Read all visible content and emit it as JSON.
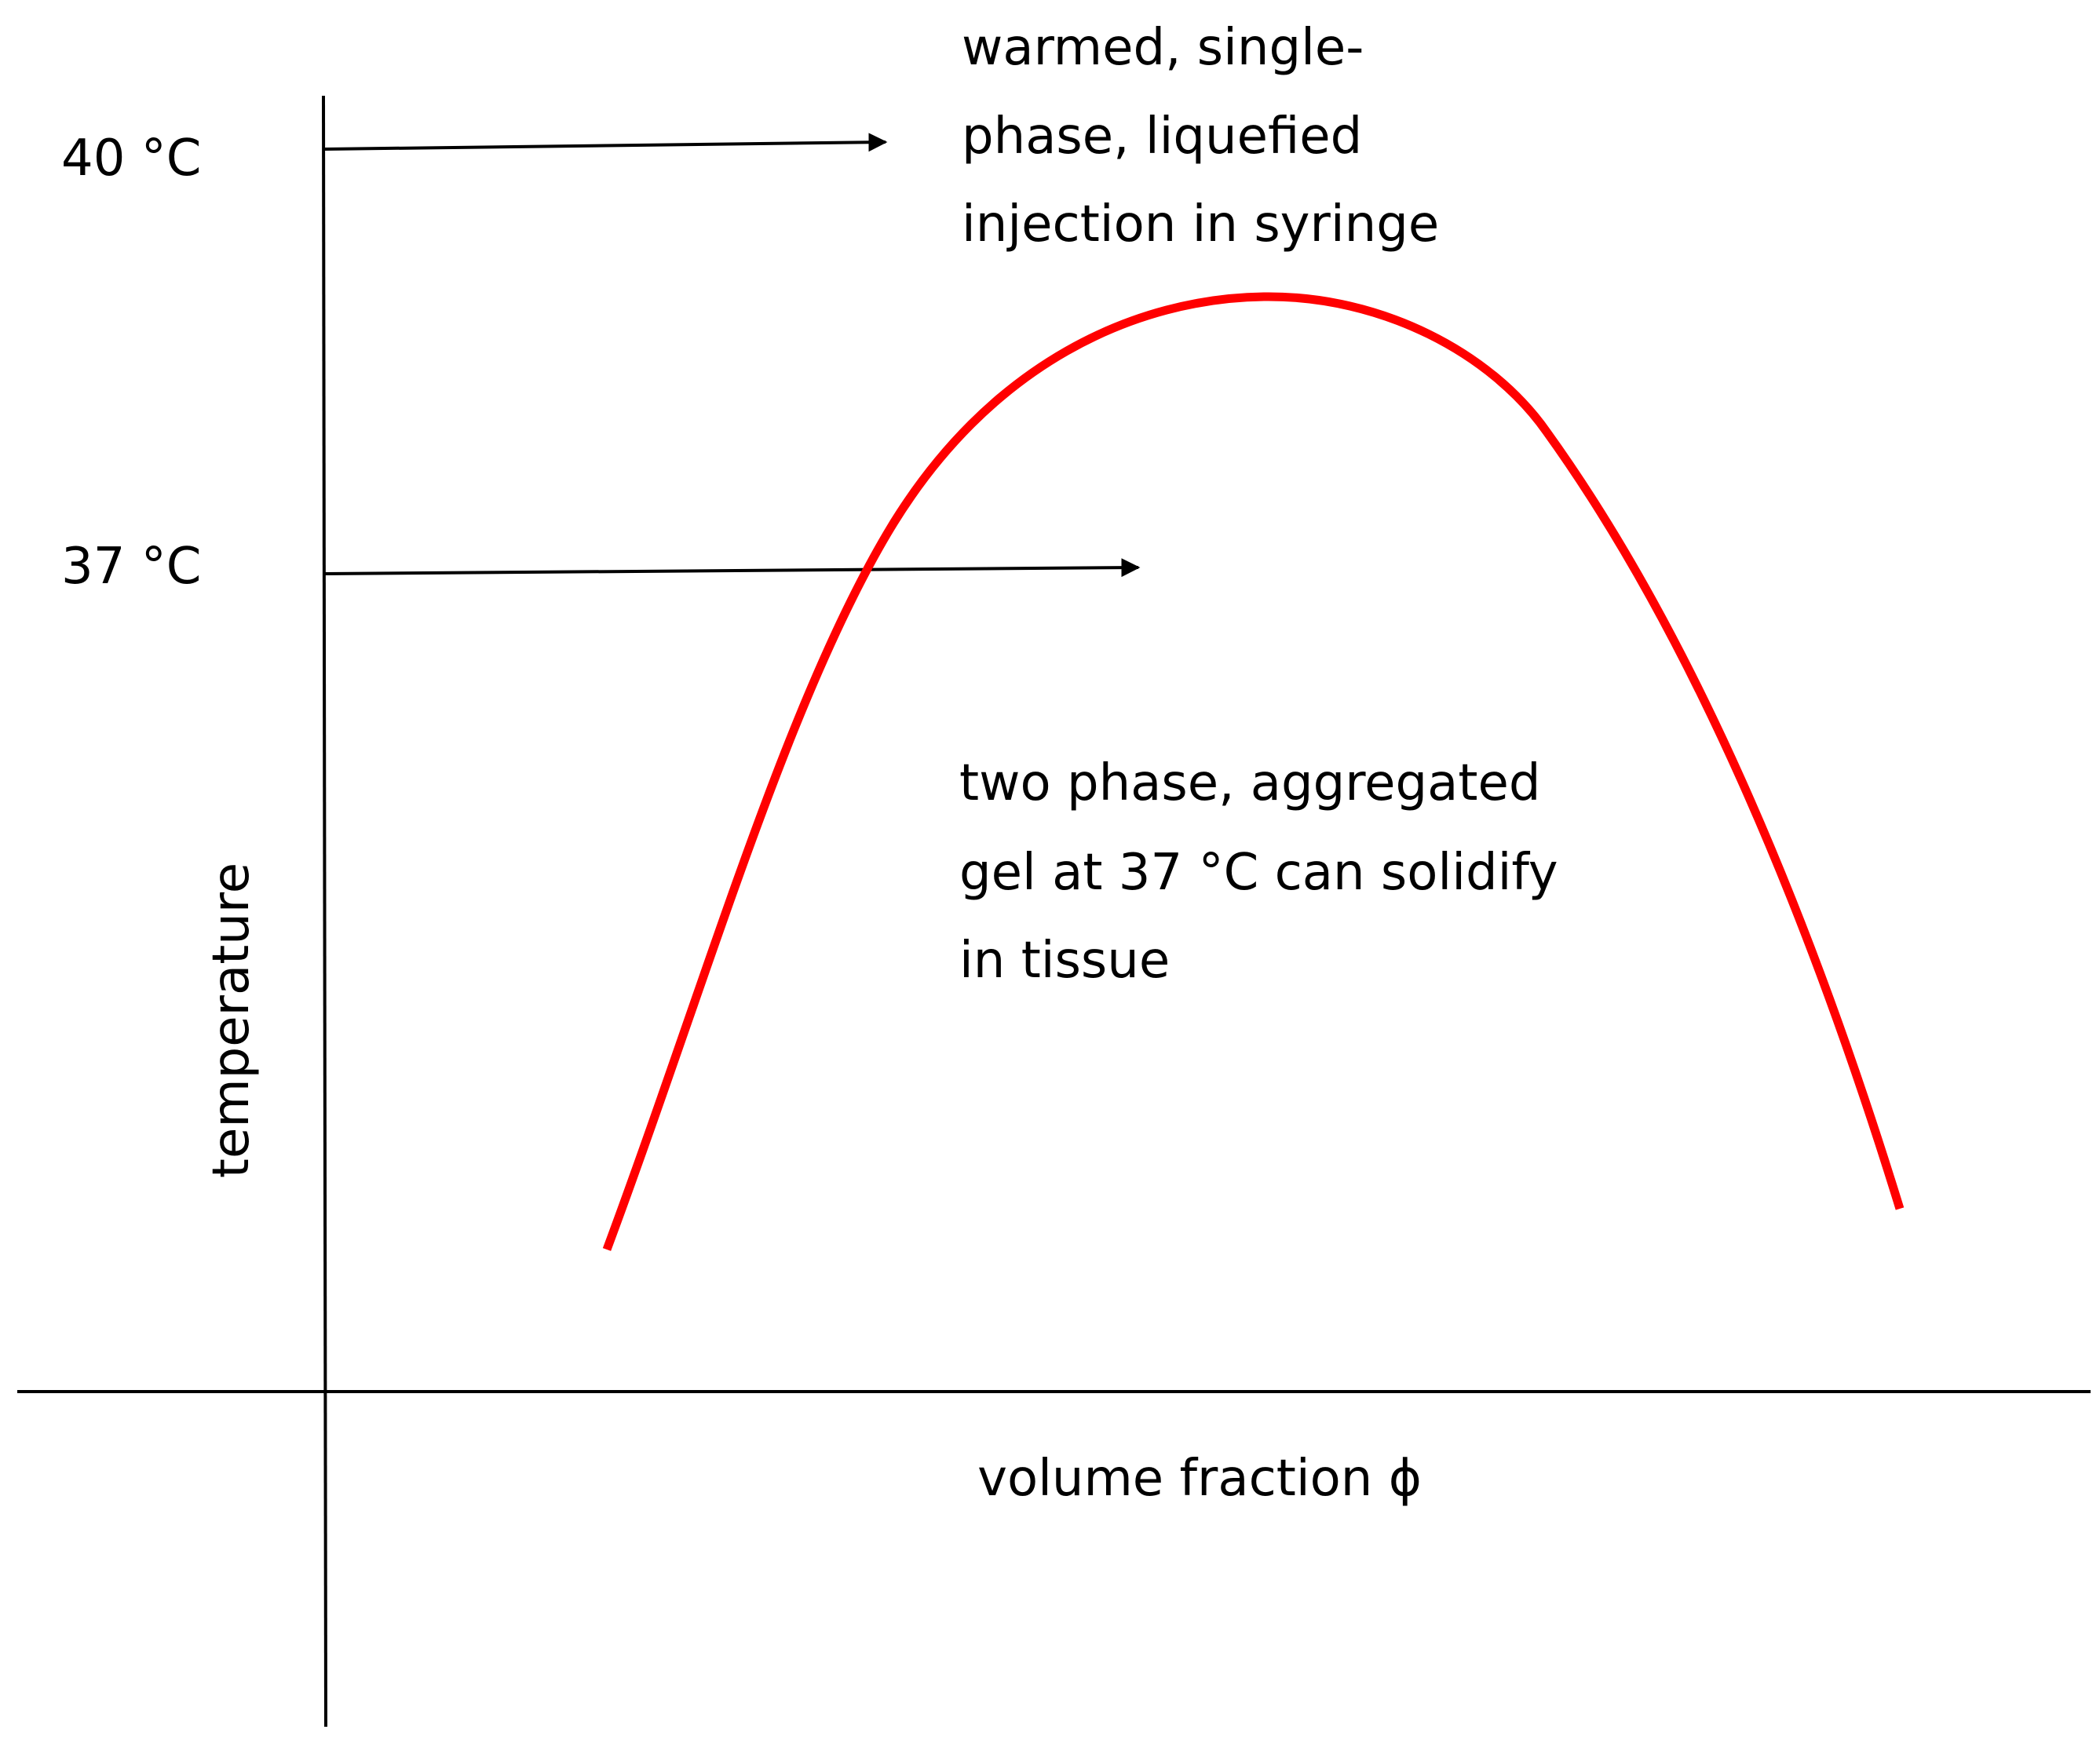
{
  "colors": {
    "background": "#ffffff",
    "axis": "#000000",
    "curve": "#ff0000",
    "text": "#000000"
  },
  "diagram": {
    "y_ticks": [
      "40 °C",
      "37 °C"
    ],
    "y_axis_label": "temperature",
    "x_axis_label": "volume fraction ϕ",
    "annotation_top": [
      "warmed, single-",
      "phase, liquefied",
      "injection in syringe"
    ],
    "annotation_inner": [
      "two phase, aggregated",
      "gel at 37 °C can solidify",
      "in tissue"
    ]
  }
}
